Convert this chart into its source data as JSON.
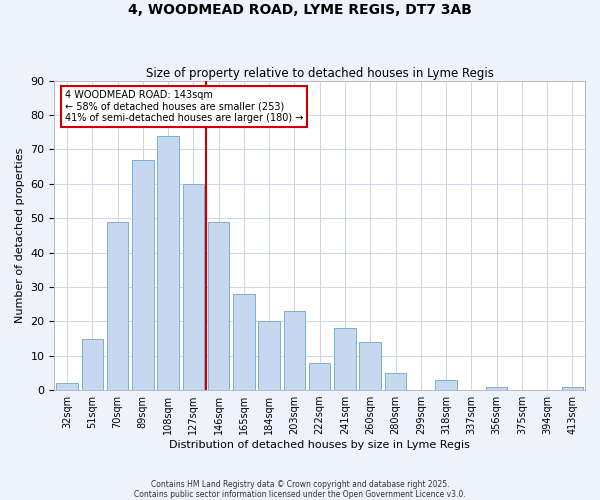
{
  "title": "4, WOODMEAD ROAD, LYME REGIS, DT7 3AB",
  "subtitle": "Size of property relative to detached houses in Lyme Regis",
  "xlabel": "Distribution of detached houses by size in Lyme Regis",
  "ylabel": "Number of detached properties",
  "bar_labels": [
    "32sqm",
    "51sqm",
    "70sqm",
    "89sqm",
    "108sqm",
    "127sqm",
    "146sqm",
    "165sqm",
    "184sqm",
    "203sqm",
    "222sqm",
    "241sqm",
    "260sqm",
    "280sqm",
    "299sqm",
    "318sqm",
    "337sqm",
    "356sqm",
    "375sqm",
    "394sqm",
    "413sqm"
  ],
  "bar_values": [
    2,
    15,
    49,
    67,
    74,
    60,
    49,
    28,
    20,
    23,
    8,
    18,
    14,
    5,
    0,
    3,
    0,
    1,
    0,
    0,
    1
  ],
  "bar_color": "#c5d8f0",
  "bar_edge_color": "#7ab0d4",
  "vline_x": 5.5,
  "vline_color": "#cc0000",
  "annotation_lines": [
    "4 WOODMEAD ROAD: 143sqm",
    "← 58% of detached houses are smaller (253)",
    "41% of semi-detached houses are larger (180) →"
  ],
  "ylim": [
    0,
    90
  ],
  "footer1": "Contains HM Land Registry data © Crown copyright and database right 2025.",
  "footer2": "Contains public sector information licensed under the Open Government Licence v3.0.",
  "bg_color": "#eef2fb",
  "plot_bg_color": "#ffffff",
  "grid_color": "#cdd5e8"
}
